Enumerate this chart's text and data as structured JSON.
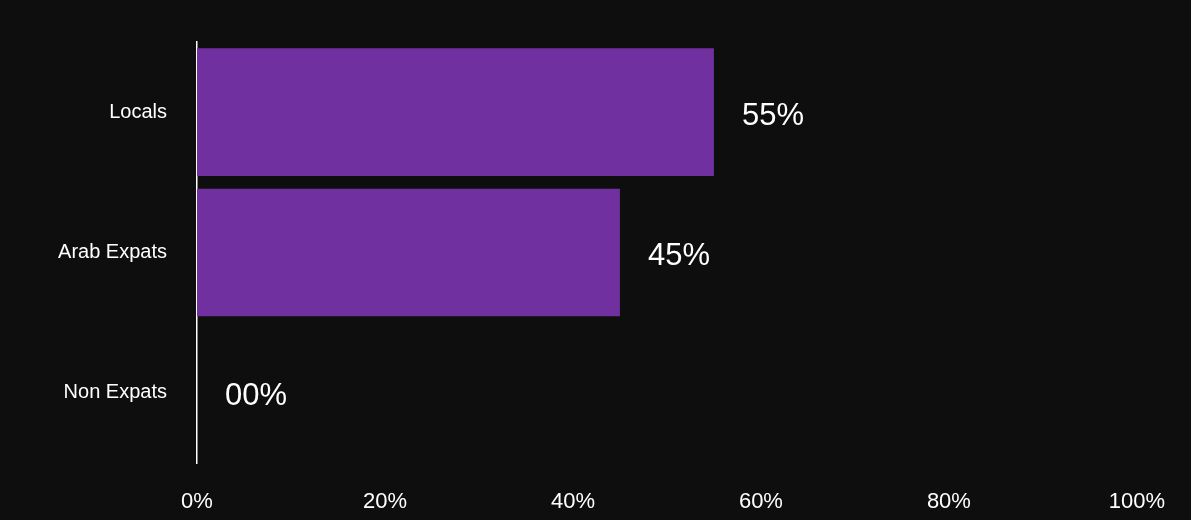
{
  "chart_data": {
    "type": "bar",
    "orientation": "horizontal",
    "categories": [
      "Locals",
      "Arab Expats",
      "Non Expats"
    ],
    "values": [
      55,
      45,
      0
    ],
    "color": "#7030a0",
    "value_labels": [
      "55%",
      "45%",
      "00%"
    ],
    "xlim": [
      0,
      100
    ],
    "xticks": [
      {
        "value": 0,
        "label": "0%"
      },
      {
        "value": 20,
        "label": "20%"
      },
      {
        "value": 40,
        "label": "40%"
      },
      {
        "value": 60,
        "label": "60%"
      },
      {
        "value": 80,
        "label": "80%"
      },
      {
        "value": 100,
        "label": "100%"
      }
    ],
    "grid": false,
    "legend": false
  }
}
